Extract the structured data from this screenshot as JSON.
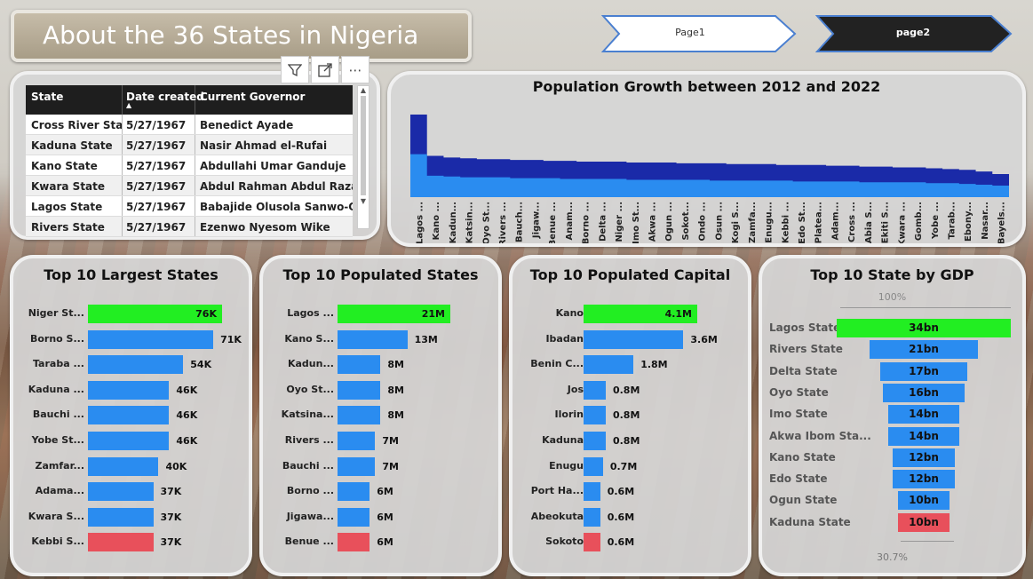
{
  "title": "About the 36 States in Nigeria",
  "nav": {
    "page1": "Page1",
    "page2": "page2"
  },
  "toolbar": {
    "filter": "filter-icon",
    "expand": "focus-mode-icon",
    "more": "more-options-icon"
  },
  "table": {
    "headers": [
      "State",
      "Date created",
      "Current Governor"
    ],
    "rows": [
      [
        "Cross River State",
        "5/27/1967",
        "Benedict Ayade"
      ],
      [
        "Kaduna State",
        "5/27/1967",
        "Nasir Ahmad el-Rufai"
      ],
      [
        "Kano State",
        "5/27/1967",
        "Abdullahi Umar Ganduje"
      ],
      [
        "Kwara State",
        "5/27/1967",
        "Abdul Rahman Abdul Razaq"
      ],
      [
        "Lagos State",
        "5/27/1967",
        "Babajide Olusola Sanwo-Olu"
      ],
      [
        "Rivers State",
        "5/27/1967",
        "Ezenwo Nyesom Wike"
      ]
    ]
  },
  "colors": {
    "top": "#22ee22",
    "mid": "#2a8cf0",
    "low": "#e8505b",
    "area_dark": "#1a2aa8",
    "area_light": "#2a8cf0"
  },
  "chart_data": [
    {
      "type": "area",
      "title": "Population Growth between 2012 and 2022",
      "x": [
        "Lagos ...",
        "Kano ...",
        "Kadun...",
        "Katsin...",
        "Oyo St...",
        "Rivers ...",
        "Bauch...",
        "Jigaw...",
        "Benue ...",
        "Anam...",
        "Borno ...",
        "Delta ...",
        "Niger ...",
        "Imo St...",
        "Akwa ...",
        "Ogun ...",
        "Sokot...",
        "Ondo ...",
        "Osun ...",
        "Kogi S...",
        "Zamfa...",
        "Enugu...",
        "Kebbi ...",
        "Edo St...",
        "Platea...",
        "Adam...",
        "Cross ...",
        "Abia S...",
        "Ekiti S...",
        "Kwara ...",
        "Gomb...",
        "Yobe ...",
        "Tarab...",
        "Ebony...",
        "Nasar...",
        "Bayels..."
      ],
      "series": [
        {
          "values": [
            100,
            50,
            48,
            47,
            46,
            46,
            45,
            45,
            44,
            44,
            43,
            43,
            43,
            42,
            42,
            42,
            41,
            41,
            41,
            40,
            40,
            40,
            39,
            39,
            39,
            38,
            38,
            37,
            37,
            36,
            36,
            35,
            34,
            33,
            31,
            28
          ]
        },
        {
          "values": [
            52,
            26,
            25,
            24,
            24,
            24,
            23,
            23,
            23,
            22,
            22,
            22,
            22,
            21,
            21,
            21,
            21,
            21,
            20,
            20,
            20,
            20,
            20,
            19,
            19,
            19,
            19,
            18,
            18,
            18,
            18,
            17,
            17,
            16,
            15,
            14
          ]
        }
      ]
    },
    {
      "type": "bar",
      "title": "Top 10 Largest States",
      "categories": [
        "Niger St...",
        "Borno S...",
        "Taraba ...",
        "Kaduna ...",
        "Bauchi ...",
        "Yobe St...",
        "Zamfar...",
        "Adama...",
        "Kwara S...",
        "Kebbi S..."
      ],
      "values": [
        76,
        71,
        54,
        46,
        46,
        46,
        40,
        37,
        37,
        37
      ],
      "labels": [
        "76K",
        "71K",
        "54K",
        "46K",
        "46K",
        "46K",
        "40K",
        "37K",
        "37K",
        "37K"
      ]
    },
    {
      "type": "bar",
      "title": "Top 10 Populated States",
      "categories": [
        "Lagos ...",
        "Kano S...",
        "Kadun...",
        "Oyo St...",
        "Katsina...",
        "Rivers ...",
        "Bauchi ...",
        "Borno ...",
        "Jigawa...",
        "Benue ..."
      ],
      "values": [
        21,
        13,
        8,
        8,
        8,
        7,
        7,
        6,
        6,
        6
      ],
      "labels": [
        "21M",
        "13M",
        "8M",
        "8M",
        "8M",
        "7M",
        "7M",
        "6M",
        "6M",
        "6M"
      ]
    },
    {
      "type": "bar",
      "title": "Top 10 Populated Capital",
      "categories": [
        "Kano",
        "Ibadan",
        "Benin C...",
        "Jos",
        "Ilorin",
        "Kaduna",
        "Enugu",
        "Port Ha...",
        "Abeokuta",
        "Sokoto"
      ],
      "values": [
        4.1,
        3.6,
        1.8,
        0.8,
        0.8,
        0.8,
        0.7,
        0.6,
        0.6,
        0.6
      ],
      "labels": [
        "4.1M",
        "3.6M",
        "1.8M",
        "0.8M",
        "0.8M",
        "0.8M",
        "0.7M",
        "0.6M",
        "0.6M",
        "0.6M"
      ]
    },
    {
      "type": "funnel",
      "title": "Top 10 State by GDP",
      "top_pct": "100%",
      "bottom_pct": "30.7%",
      "categories": [
        "Lagos State",
        "Rivers State",
        "Delta State",
        "Oyo State",
        "Imo State",
        "Akwa Ibom Sta...",
        "Kano State",
        "Edo State",
        "Ogun State",
        "Kaduna State"
      ],
      "values": [
        34,
        21,
        17,
        16,
        14,
        14,
        12,
        12,
        10,
        10
      ],
      "labels": [
        "34bn",
        "21bn",
        "17bn",
        "16bn",
        "14bn",
        "14bn",
        "12bn",
        "12bn",
        "10bn",
        "10bn"
      ]
    }
  ]
}
